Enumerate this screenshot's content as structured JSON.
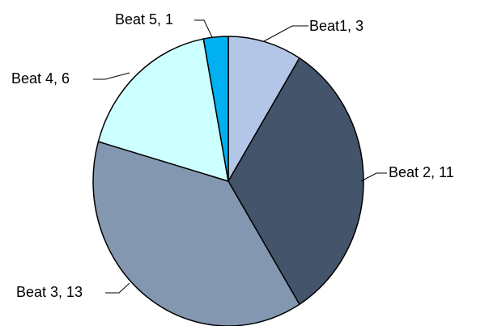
{
  "chart_data": {
    "type": "pie",
    "title": "",
    "categories": [
      "Beat1",
      "Beat 2",
      "Beat 3",
      "Beat 4",
      "Beat 5"
    ],
    "values": [
      3,
      11,
      13,
      6,
      1
    ],
    "colors": [
      "#B4C6E7",
      "#44546A",
      "#8497B0",
      "#CCFFFF",
      "#00B0F0"
    ],
    "data_labels": [
      "Beat1, 3",
      "Beat 2, 11",
      "Beat 3, 13",
      "Beat 4, 6",
      "Beat 5, 1"
    ],
    "legend": "none"
  }
}
